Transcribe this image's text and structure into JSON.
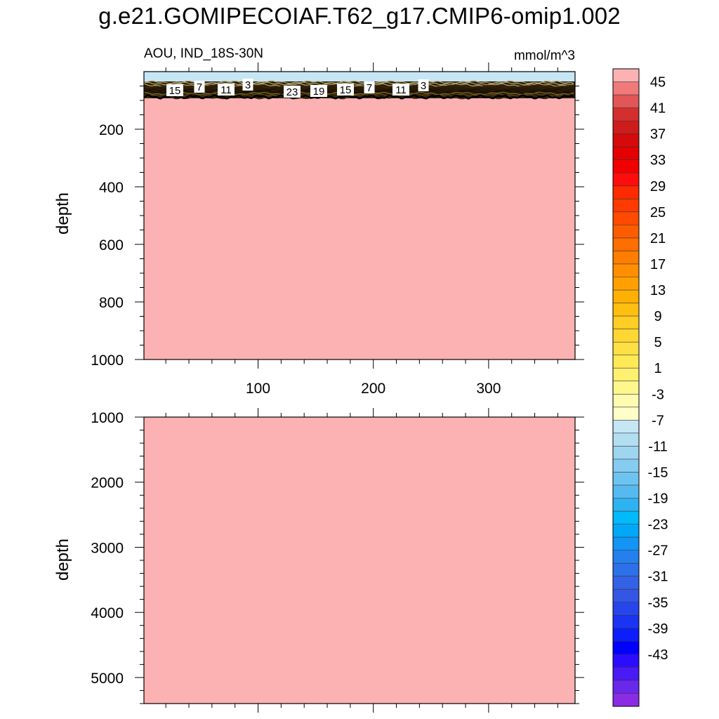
{
  "title": "g.e21.GOMIPECOIAF.T62_g17.CMIP6-omip1.002",
  "chart_data": {
    "type": "heatmap",
    "left_label": "AOU, IND_18S-30N",
    "right_label": "mmol/m^3",
    "x_ticks": [
      "100",
      "200",
      "300"
    ],
    "upper_panel": {
      "ylabel": "depth",
      "y_ticks": [
        "200",
        "400",
        "600",
        "800",
        "1000"
      ],
      "y_range": [
        0,
        1000
      ],
      "x_range": [
        1,
        375
      ],
      "surface_layer_value": "-3",
      "fill_value_below": "45",
      "contour_labels": [
        "15",
        "7",
        "11",
        "3",
        "23",
        "19",
        "15",
        "7",
        "11",
        "3"
      ]
    },
    "lower_panel": {
      "ylabel": "depth",
      "y_ticks": [
        "1000",
        "2000",
        "3000",
        "4000",
        "5000"
      ],
      "y_range": [
        1000,
        5400
      ],
      "fill_value": "45"
    },
    "colorbar": {
      "labels": [
        "45",
        "41",
        "37",
        "33",
        "29",
        "25",
        "21",
        "17",
        "13",
        "9",
        "5",
        "1",
        "-3",
        "-7",
        "-11",
        "-15",
        "-19",
        "-23",
        "-27",
        "-31",
        "-35",
        "-39",
        "-43"
      ],
      "colors": [
        "#fcb2b2",
        "#f07a7a",
        "#e25656",
        "#d42e2e",
        "#ce1c1c",
        "#d50a0a",
        "#e40000",
        "#f20000",
        "#ff0d0d",
        "#ff2a00",
        "#ff3b00",
        "#ff4a00",
        "#ff5c00",
        "#ff6e00",
        "#ff7e00",
        "#ff8f00",
        "#ffa000",
        "#ffb000",
        "#ffbf10",
        "#ffcd24",
        "#ffd733",
        "#ffe044",
        "#ffe955",
        "#fff070",
        "#fff78c",
        "#fffbb0",
        "#fffdc8",
        "#c6e6f4",
        "#b2def2",
        "#9ed6f0",
        "#86ccf0",
        "#6ec4f0",
        "#56baf0",
        "#2eb2f2",
        "#00bafa",
        "#00a8f8",
        "#1494f4",
        "#2480ee",
        "#2c70ea",
        "#3462e6",
        "#3456e4",
        "#2646ec",
        "#1a34f4",
        "#0c1efc",
        "#0000ff",
        "#2c0cff",
        "#4a1af4",
        "#6a28ec",
        "#8a2ce4"
      ]
    }
  }
}
